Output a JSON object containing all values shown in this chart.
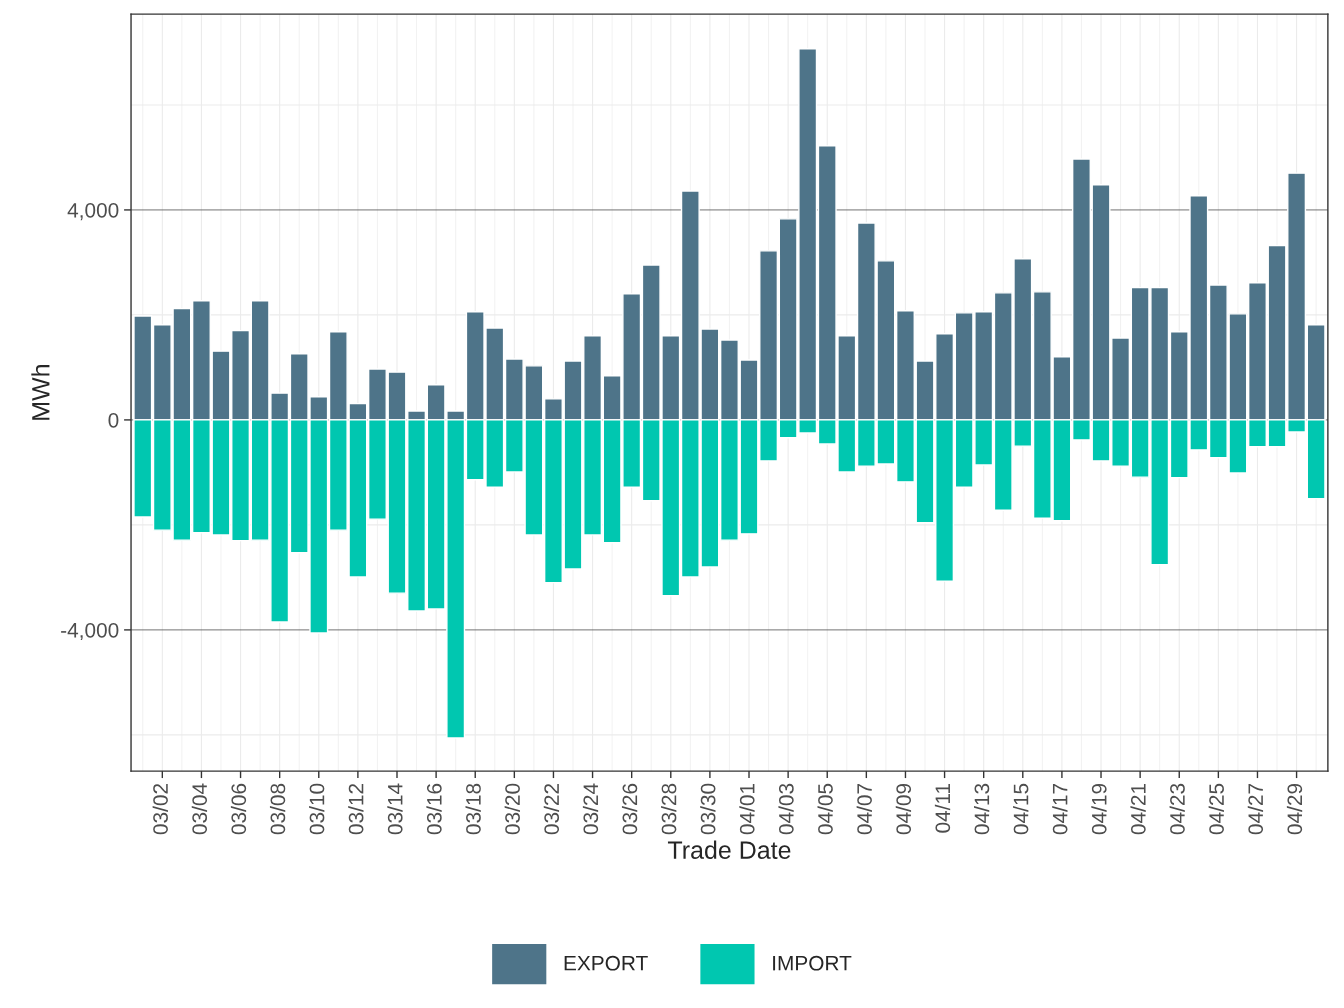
{
  "chart_data": {
    "type": "bar",
    "xlabel": "Trade Date",
    "ylabel": "MWh",
    "categories": [
      null,
      "03/02",
      null,
      "03/04",
      null,
      "03/06",
      null,
      "03/08",
      null,
      "03/10",
      null,
      "03/12",
      null,
      "03/14",
      null,
      "03/16",
      null,
      "03/18",
      null,
      "03/20",
      null,
      "03/22",
      null,
      "03/24",
      null,
      "03/26",
      null,
      "03/28",
      null,
      "03/30",
      null,
      "04/01",
      null,
      "04/03",
      null,
      "04/05",
      null,
      "04/07",
      null,
      "04/09",
      null,
      "04/11",
      null,
      "04/13",
      null,
      "04/15",
      null,
      "04/17",
      null,
      "04/19",
      null,
      "04/21",
      null,
      "04/23",
      null,
      "04/25",
      null,
      "04/27",
      null,
      "04/29",
      null
    ],
    "series": [
      {
        "name": "EXPORT",
        "color": "#4e7489",
        "values": [
          1980,
          1810,
          2120,
          2270,
          1310,
          1700,
          2270,
          510,
          1260,
          440,
          1680,
          310,
          970,
          910,
          170,
          670,
          170,
          2060,
          1750,
          1160,
          1030,
          400,
          1120,
          1600,
          840,
          2400,
          2950,
          1600,
          4360,
          1730,
          1520,
          1140,
          3220,
          3830,
          7070,
          5220,
          1600,
          3750,
          3030,
          2080,
          1120,
          1640,
          2040,
          2060,
          2420,
          3070,
          2440,
          1200,
          4970,
          4480,
          1560,
          2520,
          2520,
          1680,
          4270,
          2570,
          2020,
          2610,
          3320,
          4700,
          1810
        ]
      },
      {
        "name": "IMPORT",
        "color": "#00c7b0",
        "values": [
          -1850,
          -2100,
          -2290,
          -2150,
          -2190,
          -2300,
          -2290,
          -3850,
          -2530,
          -4060,
          -2100,
          -2990,
          -1890,
          -3300,
          -3640,
          -3600,
          -6060,
          -1140,
          -1280,
          -990,
          -2190,
          -3100,
          -2840,
          -2190,
          -2340,
          -1280,
          -1540,
          -3350,
          -2990,
          -2800,
          -2290,
          -2170,
          -780,
          -340,
          -250,
          -460,
          -990,
          -880,
          -840,
          -1180,
          -1960,
          -3070,
          -1280,
          -860,
          -1720,
          -500,
          -1870,
          -1920,
          -380,
          -780,
          -880,
          -1090,
          -2760,
          -1100,
          -570,
          -720,
          -1010,
          -510,
          -510,
          -230,
          -1500
        ]
      }
    ],
    "ylim": [
      -6690,
      7730
    ],
    "yticks": [
      {
        "value": -4000,
        "label": "-4,000"
      },
      0,
      {
        "value": 4000,
        "label": "4,000"
      }
    ],
    "stacked": true,
    "grid": true,
    "legend": "bottom"
  }
}
